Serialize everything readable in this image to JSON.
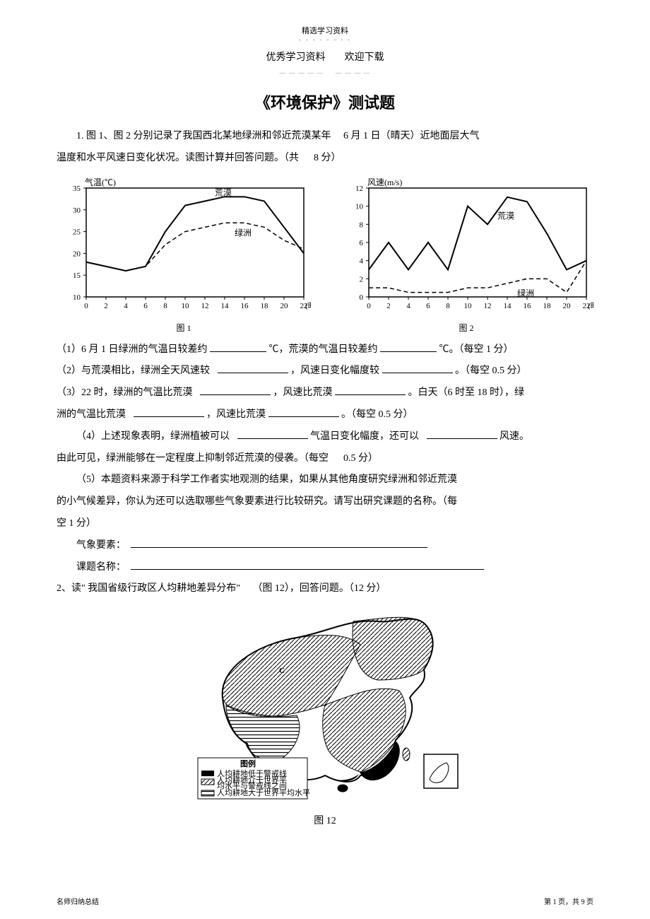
{
  "header": {
    "small_top": "精选学习资料",
    "sub_left": "优秀学习资料",
    "sub_right": "欢迎下载"
  },
  "title": "《环境保护》测试题",
  "q1": {
    "intro_a": "1. 图 1、图 2 分别记录了我国西北某地绿洲和邻近荒漠某年",
    "intro_b": "6 月 1 日（晴天）近地面层大气",
    "intro_c": "温度和水平风速日变化状况。读图计算并回答问题。（共",
    "intro_d": "8 分）",
    "p1_a": "（1）6 月 1 日绿洲的气温日较差约",
    "p1_b": "℃，荒漠的气温日较差约",
    "p1_c": "℃。（每空 1 分）",
    "p2_a": "（2）与荒漠相比，绿洲全天风速较",
    "p2_b": "，风速日变化幅度较",
    "p2_c": "。（每空 0.5 分）",
    "p3_a": "（3）22 时，绿洲的气温比荒漠",
    "p3_b": "，风速比荒漠",
    "p3_c": "。白天（6 时至 18 时），绿",
    "p3_d": "洲的气温比荒漠",
    "p3_e": "，风速比荒漠",
    "p3_f": "。（每空 0.5 分）",
    "p4_a": "（4）上述现象表明，绿洲植被可以",
    "p4_b": "气温日变化幅度，还可以",
    "p4_c": "风速。",
    "p4_d": "由此可见，绿洲能够在一定程度上抑制邻近荒漠的侵袭。（每空",
    "p4_e": "0.5 分）",
    "p5_a": "（5）本题资料来源于科学工作者实地观测的结果，如果从其他角度研究绿洲和邻近荒漠",
    "p5_b": "的小气候差异，你认为还可以选取哪些气象要素进行比较研究。请写出研究课题的名称。（每",
    "p5_c": "空 1 分）",
    "p5_d": "气象要素：",
    "p5_e": "课题名称："
  },
  "q2": {
    "line_a": "2、读\" 我国省级行政区人均耕地差异分布\"",
    "line_b": "（图 12），回答问题。（12 分）",
    "caption": "图 12"
  },
  "chart1": {
    "ylabel": "气温(℃)",
    "xlabel_unit": "(时)",
    "caption": "图 1",
    "huangmo_label": "荒漠",
    "lvzhou_label": "绿洲",
    "y_ticks": [
      10,
      15,
      20,
      25,
      30,
      35
    ],
    "x_ticks": [
      0,
      2,
      4,
      6,
      8,
      10,
      12,
      14,
      16,
      18,
      20,
      22
    ],
    "ylim": [
      10,
      35
    ],
    "huangmo": [
      18,
      17,
      16,
      17,
      25,
      31,
      32,
      33,
      33,
      32,
      26,
      20
    ],
    "lvzhou": [
      18,
      17,
      16,
      17,
      22,
      25,
      26,
      27,
      27,
      26,
      23,
      21
    ]
  },
  "chart2": {
    "ylabel": "风速(m/s)",
    "xlabel_unit": "(时)",
    "caption": "图 2",
    "huangmo_label": "荒漠",
    "lvzhou_label": "绿洲",
    "y_ticks": [
      0,
      2,
      4,
      6,
      8,
      10,
      12
    ],
    "x_ticks": [
      0,
      2,
      4,
      6,
      8,
      10,
      12,
      14,
      16,
      18,
      20,
      22
    ],
    "ylim": [
      0,
      12
    ],
    "huangmo": [
      3,
      6,
      3,
      6,
      3,
      10,
      8,
      11,
      10.5,
      7,
      3,
      4
    ],
    "lvzhou": [
      1,
      1,
      0.5,
      0.5,
      0.5,
      1,
      1,
      1.5,
      2,
      2,
      0.5,
      4
    ]
  },
  "map": {
    "legend_title": "图例",
    "legend1": "人均耕地低于警戒线",
    "legend2": "人均耕地介于世界平均水平与警戒线之间",
    "legend3": "人均耕地大于世界平均水平"
  },
  "footer": {
    "left": "名师归纳总结",
    "right": "第 1 页，共 9 页"
  }
}
